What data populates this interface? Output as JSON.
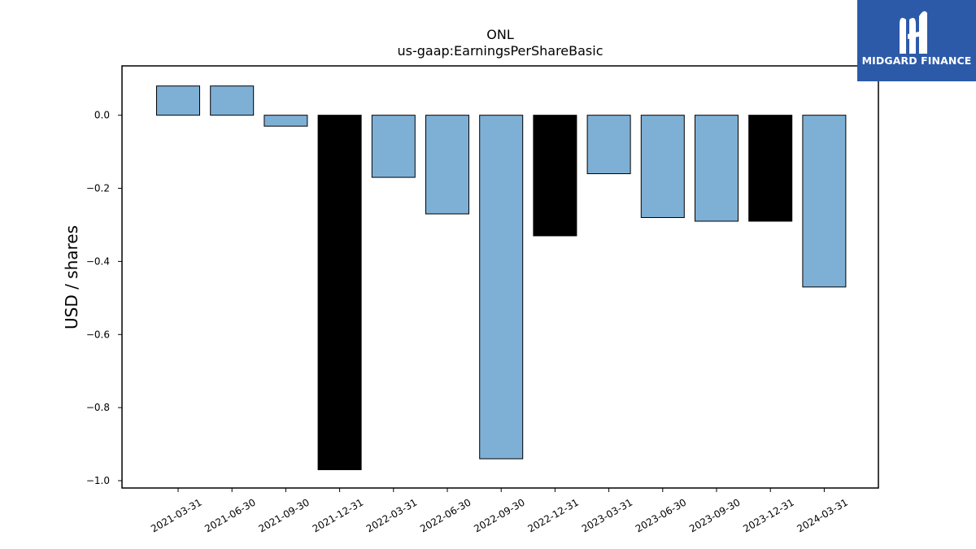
{
  "chart_data": {
    "type": "bar",
    "title": "ONL",
    "subtitle": "us-gaap:EarningsPerShareBasic",
    "xlabel": "",
    "ylabel": "USD / shares",
    "categories": [
      "2021-03-31",
      "2021-06-30",
      "2021-09-30",
      "2021-12-31",
      "2022-03-31",
      "2022-06-30",
      "2022-09-30",
      "2022-12-31",
      "2023-03-31",
      "2023-06-30",
      "2023-09-30",
      "2023-12-31",
      "2024-03-31"
    ],
    "values": [
      0.08,
      0.08,
      -0.03,
      -0.97,
      -0.17,
      -0.27,
      -0.94,
      -0.33,
      -0.16,
      -0.28,
      -0.29,
      -0.29,
      -0.47
    ],
    "bar_colors": [
      "#7eb0d5",
      "#7eb0d5",
      "#7eb0d5",
      "#000000",
      "#7eb0d5",
      "#7eb0d5",
      "#7eb0d5",
      "#000000",
      "#7eb0d5",
      "#7eb0d5",
      "#7eb0d5",
      "#000000",
      "#7eb0d5"
    ],
    "yticks": [
      0.0,
      -0.2,
      -0.4,
      -0.6,
      -0.8,
      -1.0
    ],
    "ytick_labels": [
      "0.0",
      "−0.2",
      "−0.4",
      "−0.6",
      "−0.8",
      "−1.0"
    ],
    "ylim": [
      -1.02,
      0.135
    ],
    "grid": false,
    "legend": "none"
  },
  "logo": {
    "text": "MIDGARD FINANCE",
    "bg_color": "#2d5aa8"
  }
}
